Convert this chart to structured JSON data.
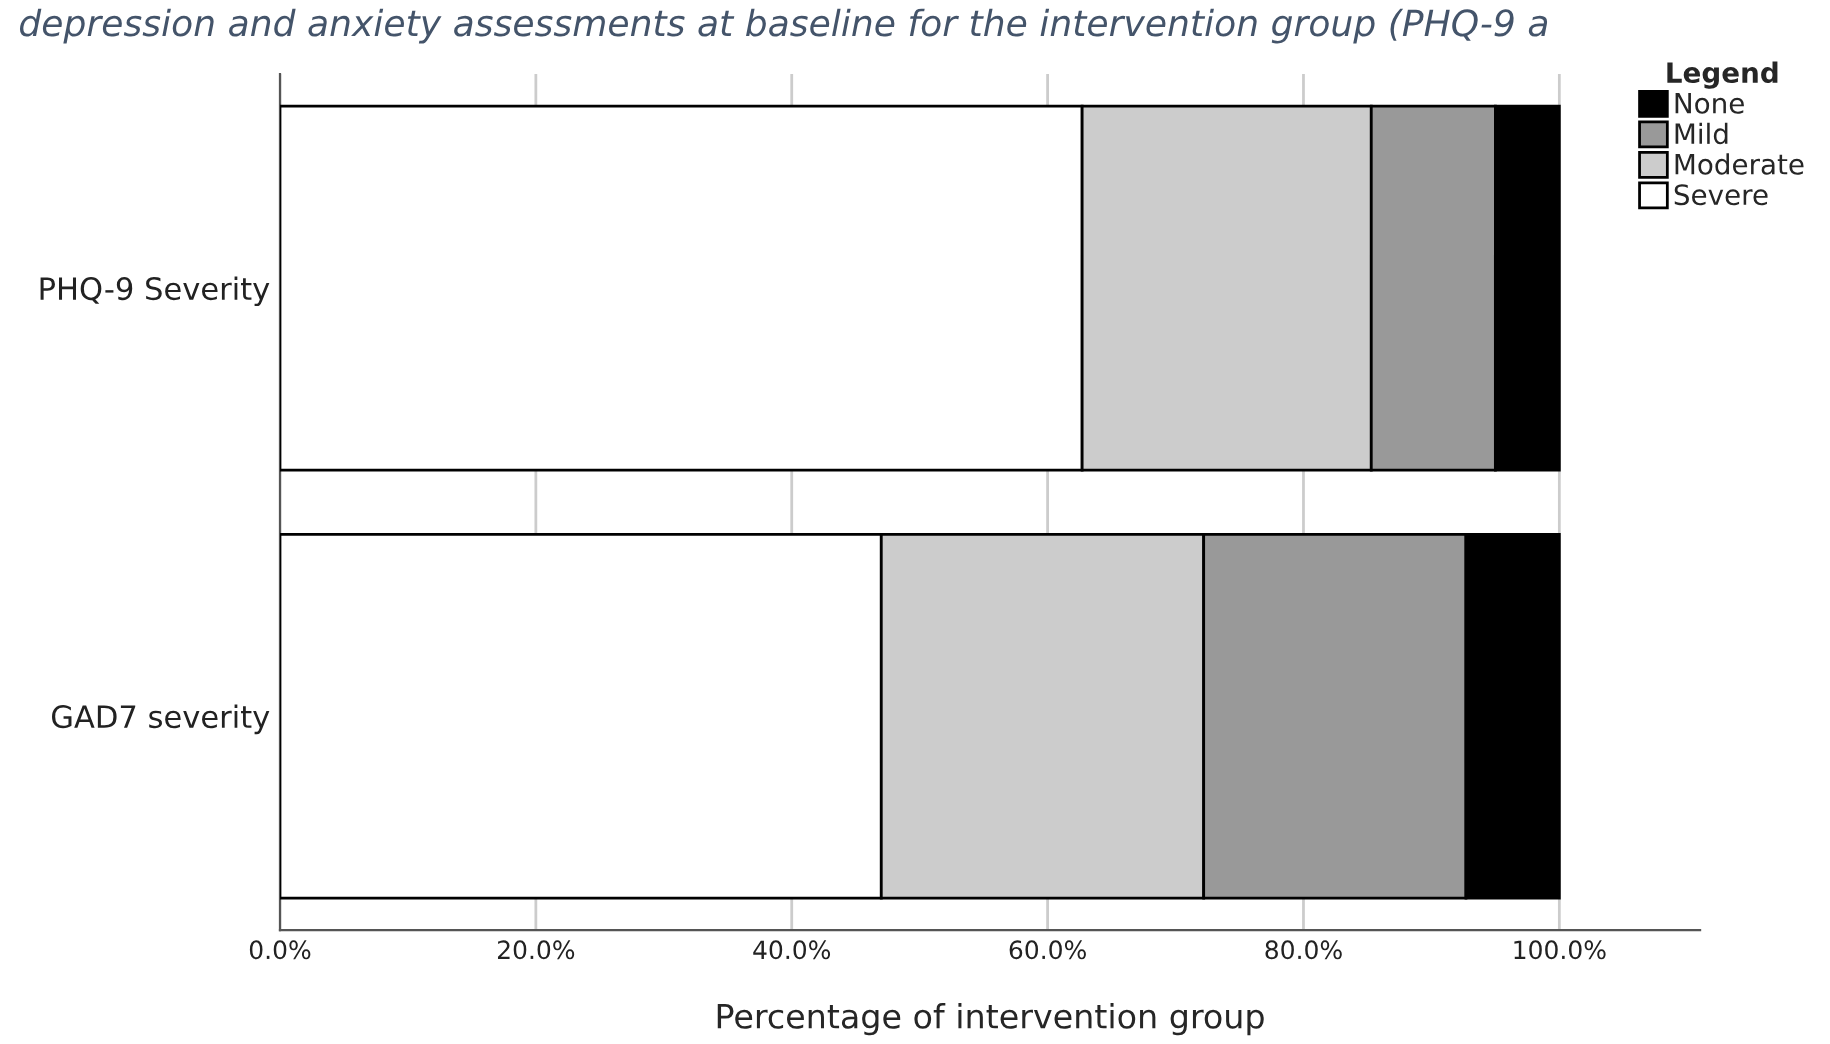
{
  "chart_data": {
    "type": "bar",
    "orientation": "horizontal",
    "stacked": true,
    "title": "depression and anxiety assessments at baseline for the intervention group (PHQ-9 a",
    "xlabel": "Percentage of intervention group",
    "legend_title": "Legend",
    "categories": [
      "PHQ-9 Severity",
      "GAD7 severity"
    ],
    "series": [
      {
        "name": "Severe",
        "color": "#ffffff",
        "values": [
          62.7,
          47.0
        ]
      },
      {
        "name": "Moderate",
        "color": "#cccccc",
        "values": [
          22.6,
          25.2
        ]
      },
      {
        "name": "Mild",
        "color": "#999999",
        "values": [
          9.7,
          20.5
        ]
      },
      {
        "name": "None",
        "color": "#000000",
        "values": [
          5.0,
          7.3
        ]
      }
    ],
    "xlim": [
      0,
      111
    ],
    "xticks": [
      {
        "value": 0,
        "label": "0.0%"
      },
      {
        "value": 20,
        "label": "20.0%"
      },
      {
        "value": 40,
        "label": "40.0%"
      },
      {
        "value": 60,
        "label": "60.0%"
      },
      {
        "value": 80,
        "label": "80.0%"
      },
      {
        "value": 100,
        "label": "100.0%"
      }
    ],
    "grid": "x",
    "legend": "top right"
  }
}
